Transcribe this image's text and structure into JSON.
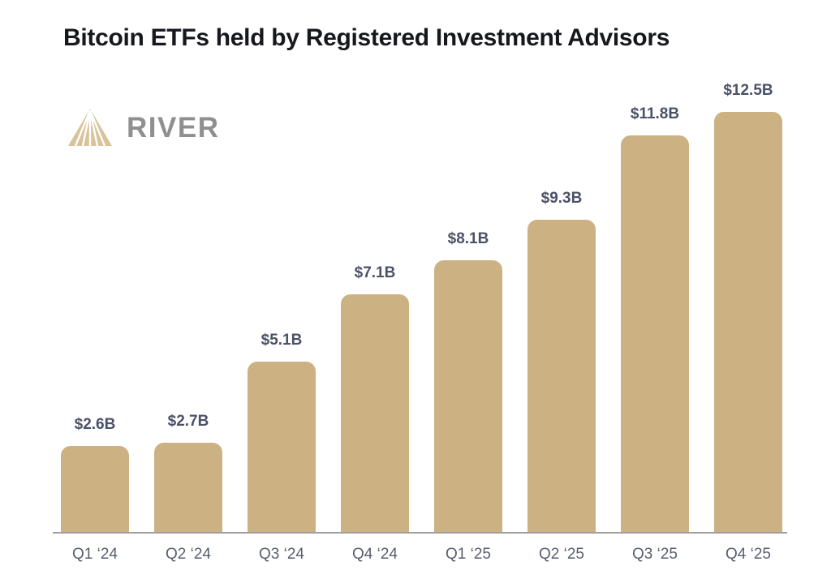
{
  "title": "Bitcoin ETFs held by Registered Investment Advisors",
  "logo": {
    "brand": "RIVER",
    "icon": "river-mountain-icon"
  },
  "colors": {
    "bar": "#ccb183",
    "logo_icon": "#d9c39a",
    "logo_text": "#8f8f8f",
    "title": "#16181d",
    "value_label": "#4b5166",
    "axis_label": "#575e70",
    "axis_line": "#9e9e9e",
    "background": "#ffffff"
  },
  "chart_data": {
    "type": "bar",
    "title": "Bitcoin ETFs held by Registered Investment Advisors",
    "categories": [
      "Q1 ‘24",
      "Q2 ‘24",
      "Q3 ‘24",
      "Q4 ‘24",
      "Q1 ‘25",
      "Q2 ‘25",
      "Q3 ‘25",
      "Q4 ‘25"
    ],
    "values": [
      2.6,
      2.7,
      5.1,
      7.1,
      8.1,
      9.3,
      11.8,
      12.5
    ],
    "value_labels": [
      "$2.6B",
      "$2.7B",
      "$5.1B",
      "$7.1B",
      "$8.1B",
      "$9.3B",
      "$11.8B",
      "$12.5B"
    ],
    "unit": "USD billions",
    "xlabel": "",
    "ylabel": "",
    "ylim": [
      0,
      12.5
    ],
    "grid": false,
    "legend": false,
    "bar_color": "#ccb183"
  }
}
